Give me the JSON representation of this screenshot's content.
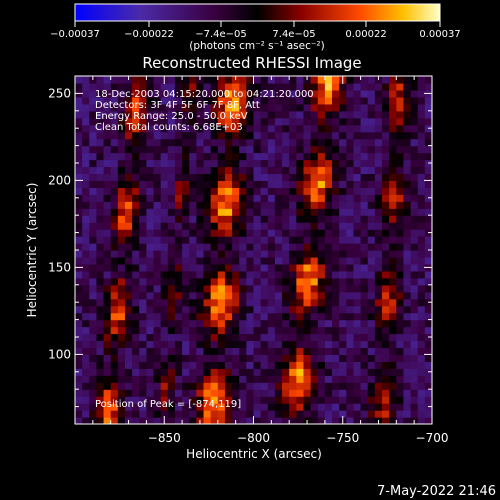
{
  "chart_data": {
    "type": "heatmap",
    "title": "Reconstructed RHESSI Image",
    "xlabel": "Heliocentric X (arcsec)",
    "ylabel": "Heliocentric Y (arcsec)",
    "xlim": [
      -900,
      -700
    ],
    "ylim": [
      60,
      260
    ],
    "x_ticks": [
      -850,
      -800,
      -750,
      -700
    ],
    "x_tick_labels": [
      "−850",
      "−800",
      "−750",
      "−700"
    ],
    "y_ticks": [
      100,
      150,
      200,
      250
    ],
    "y_tick_labels": [
      "100",
      "150",
      "200",
      "250"
    ],
    "colorbar": {
      "min": -0.00037,
      "max": 0.00037,
      "tick_values": [
        -0.00037,
        -0.00022,
        -7.4e-05,
        7.4e-05,
        0.00022,
        0.00037
      ],
      "tick_labels": [
        "−0.00037",
        "−0.00022",
        "−7.4e−05",
        "7.4e−05",
        "0.00022",
        "0.00037"
      ],
      "unit_label": "(photons cm⁻² s⁻¹ asec⁻²)"
    },
    "annotations": [
      "18-Dec-2003 04:15:20.000 to 04:21:20.000",
      "Detectors: 3F 4F 5F 6F 7F 8F, Att",
      "Energy Range: 25.0 - 50.0 keV",
      "Clean     Total counts: 6.68E+03"
    ],
    "peak_label": "Position of Peak = [-874,119]",
    "peak_position": [
      -874,
      119
    ],
    "stripes": [
      {
        "x0": -873,
        "slope": 0.09,
        "width": 7,
        "amp": 0.00032
      },
      {
        "x0": -817,
        "slope": 0.06,
        "width": 10,
        "amp": 0.00037
      },
      {
        "x0": -768,
        "slope": 0.1,
        "width": 9,
        "amp": 0.00037
      },
      {
        "x0": -723,
        "slope": 0.05,
        "width": 7,
        "amp": 0.00026
      },
      {
        "x0": -843,
        "slope": 0.08,
        "width": 5,
        "amp": 0.00018
      }
    ],
    "grid": false
  },
  "footer": {
    "timestamp": "7-May-2022 21:46"
  }
}
